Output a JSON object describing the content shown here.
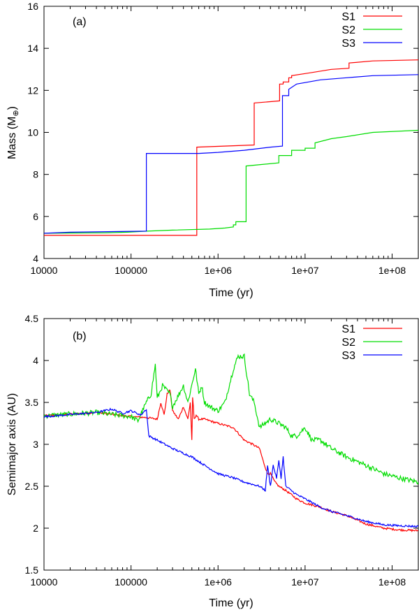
{
  "chart_data": [
    {
      "type": "line",
      "panel_label": "(a)",
      "xlabel": "Time (yr)",
      "ylabel": "Mass (M",
      "ylabel_sub": "⊕",
      "ylabel_close": ")",
      "xscale": "log",
      "xlim": [
        10000,
        200000000
      ],
      "ylim": [
        4,
        16
      ],
      "xticks": [
        10000,
        100000,
        1000000,
        10000000,
        100000000
      ],
      "xtick_labels": [
        "10000",
        "100000",
        "1e+06",
        "1e+07",
        "1e+08"
      ],
      "yticks": [
        4,
        6,
        8,
        10,
        12,
        14,
        16
      ],
      "ytick_labels": [
        "4",
        "6",
        "8",
        "10",
        "12",
        "14",
        "16"
      ],
      "legend_position": "top-right",
      "series": [
        {
          "name": "S1",
          "color": "#ff0000",
          "step": true,
          "x": [
            10000,
            570000,
            570000,
            2600000,
            2600000,
            5100000,
            5100000,
            5600000,
            5600000,
            6500000,
            6500000,
            7000000,
            7000000,
            12000000,
            20000000,
            32000000,
            32000000,
            60000000,
            200000000
          ],
          "y": [
            5.1,
            5.1,
            9.3,
            9.4,
            11.4,
            11.5,
            12.3,
            12.3,
            12.4,
            12.4,
            12.6,
            12.6,
            12.7,
            12.85,
            13.0,
            13.05,
            13.3,
            13.4,
            13.45
          ]
        },
        {
          "name": "S2",
          "color": "#00dd00",
          "step": true,
          "x": [
            10000,
            50000,
            90000,
            150000,
            300000,
            800000,
            1200000,
            1500000,
            1500000,
            1600000,
            1600000,
            2100000,
            2100000,
            5000000,
            5000000,
            7000000,
            7000000,
            10000000,
            10000000,
            13000000,
            13000000,
            20000000,
            30000000,
            60000000,
            200000000
          ],
          "y": [
            5.2,
            5.22,
            5.25,
            5.3,
            5.35,
            5.4,
            5.45,
            5.5,
            5.6,
            5.6,
            5.75,
            5.75,
            8.4,
            8.55,
            8.9,
            8.9,
            9.15,
            9.15,
            9.25,
            9.25,
            9.5,
            9.7,
            9.8,
            10.0,
            10.1
          ]
        },
        {
          "name": "S3",
          "color": "#0000ff",
          "step": true,
          "x": [
            10000,
            20000,
            150000,
            150000,
            600000,
            1000000,
            2000000,
            4000000,
            5500000,
            5500000,
            6500000,
            6500000,
            8000000,
            15000000,
            30000000,
            60000000,
            200000000
          ],
          "y": [
            5.2,
            5.25,
            5.3,
            9.0,
            9.0,
            9.05,
            9.15,
            9.3,
            9.35,
            11.75,
            11.75,
            12.05,
            12.3,
            12.5,
            12.6,
            12.7,
            12.75
          ]
        }
      ]
    },
    {
      "type": "line",
      "panel_label": "(b)",
      "xlabel": "Time (yr)",
      "ylabel": "Semimajor axis (AU)",
      "xscale": "log",
      "xlim": [
        10000,
        200000000
      ],
      "ylim": [
        1.5,
        4.5
      ],
      "xticks": [
        10000,
        100000,
        1000000,
        10000000,
        100000000
      ],
      "xtick_labels": [
        "10000",
        "100000",
        "1e+06",
        "1e+07",
        "1e+08"
      ],
      "yticks": [
        1.5,
        2,
        2.5,
        3,
        3.5,
        4,
        4.5
      ],
      "ytick_labels": [
        "1.5",
        "2",
        "2.5",
        "3",
        "3.5",
        "4",
        "4.5"
      ],
      "legend_position": "top-right",
      "series": [
        {
          "name": "S1",
          "color": "#ff0000",
          "noise": 0.012,
          "x": [
            10000,
            40000,
            100000,
            150000,
            200000,
            220000,
            240000,
            260000,
            280000,
            300000,
            350000,
            400000,
            450000,
            480000,
            500000,
            510000,
            520000,
            530000,
            560000,
            600000,
            700000,
            1000000,
            1500000,
            2000000,
            2500000,
            3000000,
            3300000,
            3700000,
            4000000,
            4500000,
            5000000,
            6000000,
            8000000,
            10000000,
            15000000,
            20000000,
            30000000,
            50000000,
            80000000,
            120000000,
            200000000
          ],
          "y": [
            3.34,
            3.38,
            3.33,
            3.32,
            3.3,
            3.5,
            3.35,
            3.6,
            3.65,
            3.4,
            3.3,
            3.45,
            3.3,
            3.5,
            3.05,
            3.55,
            3.45,
            3.3,
            3.35,
            3.3,
            3.3,
            3.25,
            3.2,
            3.05,
            3.0,
            2.95,
            2.8,
            2.65,
            2.65,
            2.55,
            2.5,
            2.45,
            2.35,
            2.3,
            2.25,
            2.2,
            2.15,
            2.05,
            2.0,
            1.98,
            1.97
          ]
        },
        {
          "name": "S2",
          "color": "#00dd00",
          "noise": 0.03,
          "x": [
            10000,
            40000,
            100000,
            120000,
            150000,
            170000,
            190000,
            200000,
            230000,
            280000,
            300000,
            400000,
            450000,
            550000,
            600000,
            650000,
            700000,
            800000,
            1000000,
            1200000,
            1500000,
            1700000,
            2000000,
            2300000,
            2600000,
            3000000,
            4000000,
            5000000,
            6000000,
            7000000,
            8000000,
            10000000,
            12000000,
            15000000,
            20000000,
            30000000,
            50000000,
            80000000,
            120000000,
            200000000
          ],
          "y": [
            3.34,
            3.38,
            3.33,
            3.28,
            3.5,
            3.6,
            3.95,
            3.55,
            3.7,
            3.6,
            3.45,
            3.7,
            3.5,
            3.9,
            3.6,
            3.7,
            3.5,
            3.45,
            3.4,
            3.5,
            3.9,
            4.05,
            4.05,
            3.6,
            3.5,
            3.2,
            3.3,
            3.25,
            3.2,
            3.1,
            3.1,
            3.2,
            3.05,
            3.05,
            2.95,
            2.85,
            2.75,
            2.65,
            2.6,
            2.55
          ]
        },
        {
          "name": "S3",
          "color": "#0000ff",
          "noise": 0.012,
          "x": [
            10000,
            40000,
            60000,
            80000,
            100000,
            130000,
            150000,
            160000,
            200000,
            300000,
            500000,
            700000,
            1000000,
            1500000,
            2000000,
            3000000,
            3500000,
            3700000,
            4000000,
            4300000,
            4700000,
            5000000,
            5300000,
            5600000,
            6000000,
            8000000,
            10000000,
            15000000,
            20000000,
            30000000,
            50000000,
            80000000,
            120000000,
            200000000
          ],
          "y": [
            3.33,
            3.38,
            3.42,
            3.37,
            3.4,
            3.35,
            3.42,
            3.1,
            3.05,
            2.95,
            2.85,
            2.75,
            2.65,
            2.6,
            2.55,
            2.5,
            2.45,
            2.75,
            2.5,
            2.75,
            2.6,
            2.8,
            2.6,
            2.85,
            2.5,
            2.4,
            2.35,
            2.25,
            2.2,
            2.15,
            2.08,
            2.04,
            2.03,
            2.02
          ]
        }
      ]
    }
  ]
}
